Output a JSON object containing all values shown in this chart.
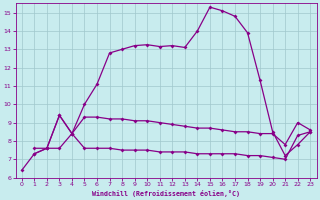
{
  "xlabel": "Windchill (Refroidissement éolien,°C)",
  "xlim": [
    -0.5,
    23.5
  ],
  "ylim": [
    6,
    15.5
  ],
  "xticks": [
    0,
    1,
    2,
    3,
    4,
    5,
    6,
    7,
    8,
    9,
    10,
    11,
    12,
    13,
    14,
    15,
    16,
    17,
    18,
    19,
    20,
    21,
    22,
    23
  ],
  "yticks": [
    6,
    7,
    8,
    9,
    10,
    11,
    12,
    13,
    14,
    15
  ],
  "bg_color": "#c8ecee",
  "line_color": "#880088",
  "grid_color": "#a0c8cc",
  "line1_x": [
    0,
    1,
    2,
    3,
    4,
    5,
    6,
    7,
    8,
    9,
    10,
    11,
    12,
    13,
    14,
    15,
    16,
    17,
    18,
    19,
    20,
    21,
    22,
    23
  ],
  "line1_y": [
    6.4,
    7.3,
    7.6,
    9.4,
    8.4,
    10.0,
    11.1,
    12.8,
    13.0,
    13.2,
    13.25,
    13.15,
    13.2,
    13.1,
    14.0,
    15.3,
    15.1,
    14.8,
    13.9,
    11.3,
    8.5,
    7.2,
    7.8,
    8.5
  ],
  "line2_x": [
    1,
    2,
    3,
    4,
    5,
    6,
    7,
    8,
    9,
    10,
    11,
    12,
    13,
    14,
    15,
    16,
    17,
    18,
    19,
    20,
    21,
    22,
    23
  ],
  "line2_y": [
    7.3,
    7.6,
    9.4,
    8.4,
    9.3,
    9.3,
    9.2,
    9.2,
    9.1,
    9.1,
    9.0,
    8.9,
    8.8,
    8.7,
    8.7,
    8.6,
    8.5,
    8.5,
    8.4,
    8.4,
    7.8,
    9.0,
    8.6
  ],
  "line3_x": [
    1,
    2,
    3,
    4,
    5,
    6,
    7,
    8,
    9,
    10,
    11,
    12,
    13,
    14,
    15,
    16,
    17,
    18,
    19,
    20,
    21,
    22,
    23
  ],
  "line3_y": [
    7.6,
    7.6,
    7.6,
    8.4,
    7.6,
    7.6,
    7.6,
    7.5,
    7.5,
    7.5,
    7.4,
    7.4,
    7.4,
    7.3,
    7.3,
    7.3,
    7.3,
    7.2,
    7.2,
    7.1,
    7.0,
    8.3,
    8.5
  ]
}
